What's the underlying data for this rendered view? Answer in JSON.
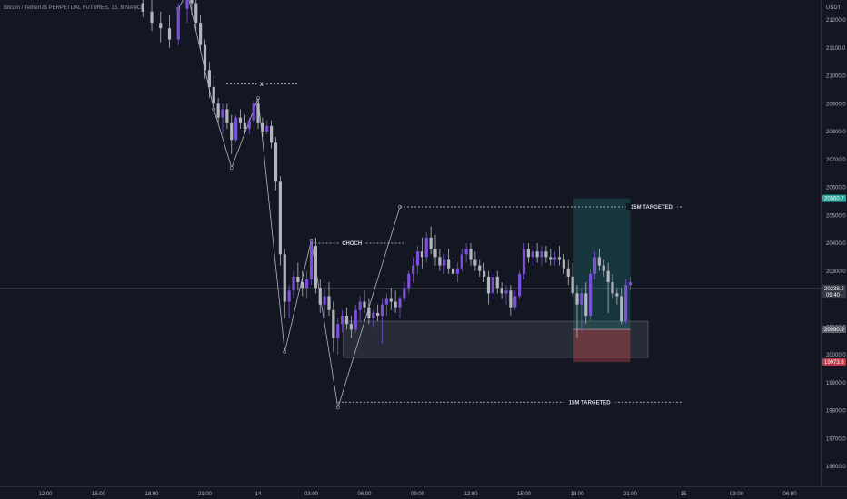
{
  "header": {
    "symbol": "Bitcoin / TetherUS PERPETUAL FUTURES, 15, BINANCE",
    "currency": "USDT"
  },
  "colors": {
    "background": "#131722",
    "bull": "#7b4fd6",
    "bear": "#b2b5be",
    "long_zone": "#26a69a",
    "short_zone": "#ef5350",
    "demand_zone": "#787b86"
  },
  "chart_data": {
    "type": "candlestick",
    "title": "Bitcoin / TetherUS PERPETUAL FUTURES, 15, BINANCE",
    "y_unit": "USDT",
    "ylim": [
      19560,
      21340
    ],
    "y_ticks": [
      "21200.0",
      "21100.0",
      "21000.0",
      "20900.0",
      "20800.0",
      "20700.0",
      "20600.0",
      "20500.0",
      "20400.0",
      "20300.0",
      "20100.0",
      "20000.0",
      "19900.0",
      "19800.0",
      "19700.0",
      "19600.0"
    ],
    "x_ticks": [
      "12:00",
      "15:00",
      "18:00",
      "21:00",
      "14",
      "03:00",
      "06:00",
      "09:00",
      "12:00",
      "15:00",
      "18:00",
      "21:00",
      "15",
      "03:00",
      "06:00"
    ],
    "x_tick_hours": [
      0,
      3,
      6,
      9,
      12,
      15,
      18,
      21,
      24,
      27,
      30,
      33,
      36,
      39,
      42
    ],
    "candles": [
      [
        5.5,
        21260,
        21310,
        21210,
        21230
      ],
      [
        6.0,
        21230,
        21280,
        21160,
        21190
      ],
      [
        6.5,
        21190,
        21230,
        21120,
        21170
      ],
      [
        7.0,
        21170,
        21220,
        21100,
        21130
      ],
      [
        7.5,
        21130,
        21260,
        21110,
        21240
      ],
      [
        8.0,
        21240,
        21320,
        21190,
        21300
      ],
      [
        8.25,
        21300,
        21320,
        21220,
        21260
      ],
      [
        8.5,
        21260,
        21290,
        21160,
        21190
      ],
      [
        8.75,
        21190,
        21220,
        21090,
        21110
      ],
      [
        9.0,
        21110,
        21130,
        20990,
        21020
      ],
      [
        9.25,
        21020,
        21050,
        20920,
        20960
      ],
      [
        9.5,
        20960,
        21000,
        20870,
        20900
      ],
      [
        9.75,
        20900,
        20920,
        20830,
        20850
      ],
      [
        10.0,
        20850,
        20900,
        20790,
        20880
      ],
      [
        10.25,
        20880,
        20900,
        20810,
        20830
      ],
      [
        10.5,
        20830,
        20860,
        20720,
        20770
      ],
      [
        10.75,
        20770,
        20860,
        20760,
        20850
      ],
      [
        11.0,
        20850,
        20880,
        20810,
        20830
      ],
      [
        11.25,
        20830,
        20860,
        20790,
        20810
      ],
      [
        11.5,
        20810,
        20850,
        20790,
        20840
      ],
      [
        11.75,
        20840,
        20910,
        20830,
        20900
      ],
      [
        12.0,
        20900,
        20920,
        20810,
        20830
      ],
      [
        12.25,
        20830,
        20850,
        20780,
        20800
      ],
      [
        12.5,
        20800,
        20840,
        20790,
        20820
      ],
      [
        12.75,
        20820,
        20840,
        20740,
        20760
      ],
      [
        13.0,
        20760,
        20780,
        20590,
        20620
      ],
      [
        13.25,
        20620,
        20640,
        20320,
        20360
      ],
      [
        13.5,
        20360,
        20380,
        20130,
        20190
      ],
      [
        13.75,
        20190,
        20250,
        20130,
        20230
      ],
      [
        14.0,
        20230,
        20300,
        20200,
        20280
      ],
      [
        14.25,
        20280,
        20330,
        20230,
        20260
      ],
      [
        14.5,
        20260,
        20300,
        20210,
        20240
      ],
      [
        14.75,
        20240,
        20300,
        20200,
        20270
      ],
      [
        15.0,
        20270,
        20410,
        20250,
        20390
      ],
      [
        15.25,
        20390,
        20420,
        20220,
        20240
      ],
      [
        15.5,
        20240,
        20270,
        20150,
        20180
      ],
      [
        15.75,
        20180,
        20240,
        20130,
        20210
      ],
      [
        16.0,
        20210,
        20260,
        20140,
        20160
      ],
      [
        16.25,
        20160,
        20190,
        20010,
        20060
      ],
      [
        16.5,
        20060,
        20130,
        20000,
        20110
      ],
      [
        16.75,
        20110,
        20160,
        20080,
        20140
      ],
      [
        17.0,
        20140,
        20170,
        20090,
        20110
      ],
      [
        17.25,
        20110,
        20140,
        20060,
        20090
      ],
      [
        17.5,
        20090,
        20180,
        20080,
        20160
      ],
      [
        17.75,
        20160,
        20210,
        20120,
        20190
      ],
      [
        18.0,
        20190,
        20230,
        20150,
        20170
      ],
      [
        18.25,
        20170,
        20200,
        20110,
        20130
      ],
      [
        18.5,
        20130,
        20160,
        20100,
        20150
      ],
      [
        18.75,
        20150,
        20180,
        20120,
        20140
      ],
      [
        19.0,
        20140,
        20200,
        20040,
        20180
      ],
      [
        19.25,
        20180,
        20220,
        20140,
        20200
      ],
      [
        19.5,
        20200,
        20240,
        20160,
        20190
      ],
      [
        19.75,
        20190,
        20230,
        20150,
        20170
      ],
      [
        20.0,
        20170,
        20210,
        20130,
        20200
      ],
      [
        20.25,
        20200,
        20260,
        20190,
        20240
      ],
      [
        20.5,
        20240,
        20300,
        20220,
        20290
      ],
      [
        20.75,
        20290,
        20350,
        20260,
        20320
      ],
      [
        21.0,
        20320,
        20390,
        20290,
        20370
      ],
      [
        21.25,
        20370,
        20420,
        20310,
        20350
      ],
      [
        21.5,
        20350,
        20440,
        20330,
        20420
      ],
      [
        21.75,
        20420,
        20460,
        20360,
        20380
      ],
      [
        22.0,
        20380,
        20430,
        20320,
        20350
      ],
      [
        22.25,
        20350,
        20380,
        20300,
        20320
      ],
      [
        22.5,
        20320,
        20360,
        20290,
        20340
      ],
      [
        22.75,
        20340,
        20380,
        20290,
        20310
      ],
      [
        23.0,
        20310,
        20350,
        20270,
        20290
      ],
      [
        23.25,
        20290,
        20330,
        20260,
        20310
      ],
      [
        23.5,
        20310,
        20380,
        20300,
        20360
      ],
      [
        23.75,
        20360,
        20400,
        20330,
        20380
      ],
      [
        24.0,
        20380,
        20400,
        20320,
        20340
      ],
      [
        24.25,
        20340,
        20370,
        20300,
        20320
      ],
      [
        24.5,
        20320,
        20340,
        20280,
        20300
      ],
      [
        24.75,
        20300,
        20330,
        20260,
        20280
      ],
      [
        25.0,
        20280,
        20300,
        20180,
        20220
      ],
      [
        25.25,
        20220,
        20300,
        20200,
        20280
      ],
      [
        25.5,
        20280,
        20300,
        20220,
        20240
      ],
      [
        25.75,
        20240,
        20260,
        20200,
        20220
      ],
      [
        26.0,
        20220,
        20250,
        20180,
        20230
      ],
      [
        26.25,
        20230,
        20250,
        20140,
        20170
      ],
      [
        26.5,
        20170,
        20230,
        20160,
        20210
      ],
      [
        26.75,
        20210,
        20300,
        20200,
        20290
      ],
      [
        27.0,
        20290,
        20400,
        20270,
        20380
      ],
      [
        27.25,
        20380,
        20400,
        20330,
        20350
      ],
      [
        27.5,
        20350,
        20390,
        20320,
        20370
      ],
      [
        27.75,
        20370,
        20400,
        20330,
        20350
      ],
      [
        28.0,
        20350,
        20390,
        20320,
        20370
      ],
      [
        28.25,
        20370,
        20390,
        20330,
        20350
      ],
      [
        28.5,
        20350,
        20380,
        20320,
        20340
      ],
      [
        28.75,
        20340,
        20370,
        20320,
        20350
      ],
      [
        29.0,
        20350,
        20390,
        20320,
        20340
      ],
      [
        29.25,
        20340,
        20360,
        20290,
        20310
      ],
      [
        29.5,
        20310,
        20340,
        20250,
        20280
      ],
      [
        29.75,
        20280,
        20330,
        20210,
        20220
      ],
      [
        30.0,
        20220,
        20250,
        20060,
        20180
      ],
      [
        30.25,
        20180,
        20240,
        20080,
        20220
      ],
      [
        30.5,
        20220,
        20260,
        20110,
        20140
      ],
      [
        30.75,
        20140,
        20310,
        20120,
        20290
      ],
      [
        31.0,
        20290,
        20370,
        20270,
        20350
      ],
      [
        31.25,
        20350,
        20380,
        20300,
        20320
      ],
      [
        31.5,
        20320,
        20340,
        20280,
        20300
      ],
      [
        31.75,
        20300,
        20330,
        20150,
        20260
      ],
      [
        32.0,
        20260,
        20290,
        20200,
        20220
      ],
      [
        32.25,
        20220,
        20240,
        20180,
        20210
      ],
      [
        32.5,
        20210,
        20240,
        20110,
        20120
      ],
      [
        32.75,
        20120,
        20270,
        20110,
        20250
      ],
      [
        33.0,
        20250,
        20280,
        20230,
        20260
      ]
    ],
    "swing_line": [
      [
        7.5,
        21240
      ],
      [
        8.0,
        21300
      ],
      [
        9.5,
        20880
      ],
      [
        10.5,
        20670
      ],
      [
        12.0,
        20920
      ],
      [
        13.5,
        20010
      ],
      [
        15.0,
        20410
      ],
      [
        16.5,
        19810
      ],
      [
        20.0,
        20530
      ]
    ],
    "levels": [
      {
        "label": "X",
        "price": 20970,
        "x1": 10.2,
        "x2": 14.2
      },
      {
        "label": "CHOCH",
        "price": 20400,
        "x1": 15.0,
        "x2": 20.2
      },
      {
        "label": "15M TARGETED",
        "price": 20530,
        "x1": 20.0,
        "x2": 36.0
      },
      {
        "label": "15M TARGETED",
        "price": 19830,
        "x1": 16.5,
        "x2": 36.0
      }
    ],
    "demand_zone": {
      "x1": 16.8,
      "x2": 34.0,
      "top": 20120,
      "bottom": 19990
    },
    "position": {
      "x1": 29.8,
      "x2": 33.0,
      "entry": 20090.9,
      "target": 20560.7,
      "stop": 19973.8
    },
    "current_price": {
      "price": 20238.2,
      "label": "20238.2",
      "countdown": "09:40"
    },
    "price_badges": {
      "target": "20560.7",
      "entry": "20090.9",
      "stop": "19973.8"
    }
  }
}
